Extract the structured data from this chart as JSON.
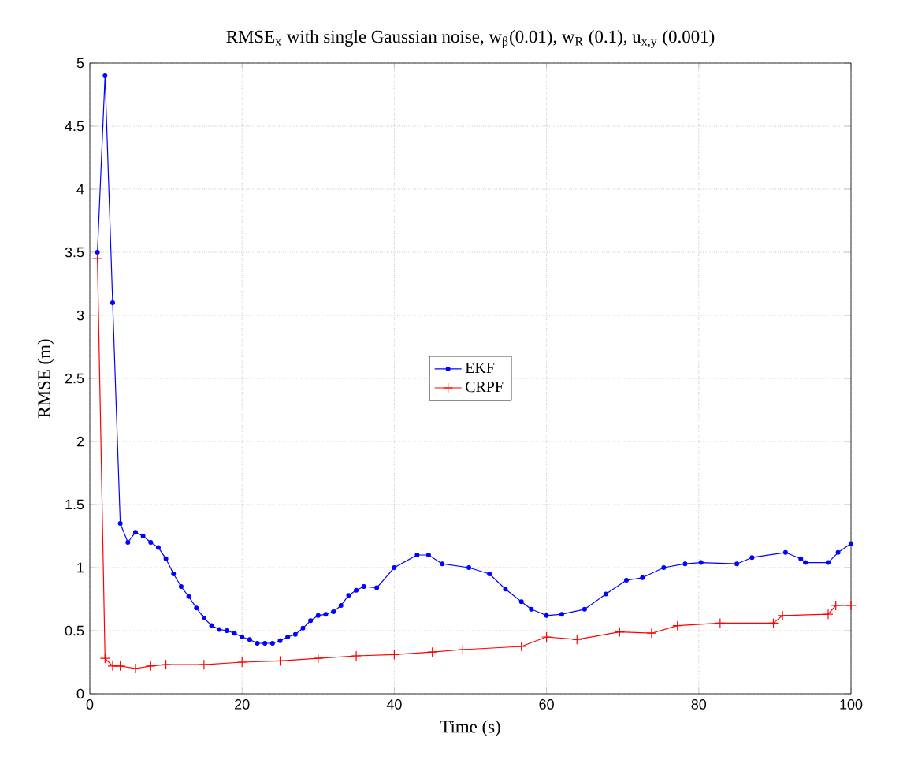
{
  "chart_data": {
    "type": "line",
    "title": "RMSE$_{x}$ with single Gaussian noise, w$_{β}$(0.01), w$_{R}$ (0.1), u$_{x,y}$ (0.001)",
    "xlabel": "Time (s)",
    "ylabel": "RMSE (m)",
    "xlim": [
      0,
      100
    ],
    "ylim": [
      0,
      5
    ],
    "xticks": [
      0,
      20,
      40,
      60,
      80,
      100
    ],
    "yticks": [
      0,
      0.5,
      1,
      1.5,
      2,
      2.5,
      3,
      3.5,
      4,
      4.5,
      5
    ],
    "grid": true,
    "legend": "center",
    "series": [
      {
        "name": "EKF",
        "color": "#0000ff",
        "marker": "circle",
        "x": [
          1,
          2,
          3,
          4,
          5,
          6,
          7,
          8,
          9,
          10,
          11,
          12,
          13,
          14,
          15,
          16,
          17,
          18,
          19,
          20,
          21,
          22,
          23,
          24,
          25,
          26,
          27,
          28,
          29,
          30,
          31,
          32,
          33,
          34,
          35,
          36,
          37.7,
          40,
          43,
          44.5,
          46.3,
          49.8,
          52.5,
          54.6,
          56.7,
          58,
          60,
          62,
          65,
          67.8,
          70.5,
          72.6,
          75.4,
          78.2,
          80.3,
          85,
          87,
          91.4,
          93.4,
          94,
          97,
          98.3,
          100
        ],
        "values": [
          3.5,
          4.9,
          3.1,
          1.35,
          1.2,
          1.28,
          1.25,
          1.2,
          1.16,
          1.07,
          0.95,
          0.85,
          0.77,
          0.68,
          0.6,
          0.54,
          0.51,
          0.5,
          0.48,
          0.45,
          0.43,
          0.4,
          0.4,
          0.4,
          0.42,
          0.45,
          0.47,
          0.52,
          0.58,
          0.62,
          0.63,
          0.65,
          0.7,
          0.78,
          0.82,
          0.85,
          0.84,
          1.0,
          1.1,
          1.1,
          1.03,
          1.0,
          0.95,
          0.83,
          0.73,
          0.67,
          0.62,
          0.63,
          0.67,
          0.79,
          0.9,
          0.92,
          1.0,
          1.03,
          1.04,
          1.03,
          1.08,
          1.12,
          1.07,
          1.04,
          1.04,
          1.12,
          1.19
        ]
      },
      {
        "name": "CRPF",
        "color": "#ff0000",
        "marker": "cross",
        "x": [
          1,
          2,
          3,
          4,
          6,
          8,
          10,
          15,
          20,
          25,
          30,
          35,
          40,
          45,
          49,
          56.7,
          60,
          64,
          69.6,
          73.8,
          77.2,
          82.8,
          89.8,
          91,
          97,
          98,
          100
        ],
        "values": [
          3.45,
          0.28,
          0.22,
          0.22,
          0.2,
          0.22,
          0.23,
          0.23,
          0.25,
          0.26,
          0.28,
          0.3,
          0.31,
          0.33,
          0.35,
          0.375,
          0.45,
          0.43,
          0.49,
          0.48,
          0.54,
          0.56,
          0.56,
          0.62,
          0.63,
          0.7,
          0.7
        ]
      }
    ]
  }
}
